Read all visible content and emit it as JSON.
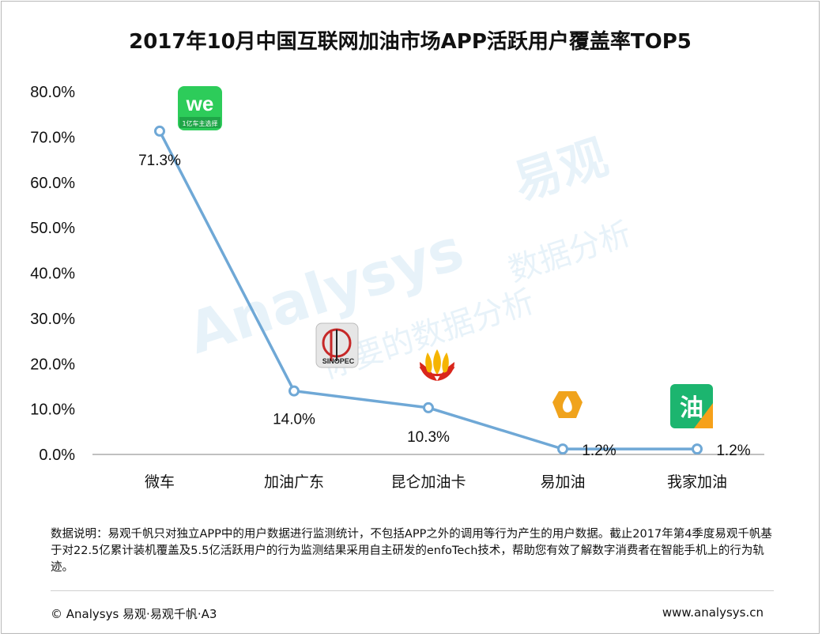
{
  "title": "2017年10月中国互联网加油市场APP活跃用户覆盖率TOP5",
  "watermark": {
    "brand": "Analysys",
    "brand_cn": "易观",
    "tagline_a": "数据分析",
    "tagline_b": "你要的数据分析"
  },
  "chart_data": {
    "type": "line",
    "title": "2017年10月中国互联网加油市场APP活跃用户覆盖率TOP5",
    "categories": [
      "微车",
      "加油广东",
      "昆仑加油卡",
      "易加油",
      "我家加油"
    ],
    "values": [
      71.3,
      14.0,
      10.3,
      1.2,
      1.2
    ],
    "data_labels": [
      "71.3%",
      "14.0%",
      "10.3%",
      "1.2%",
      "1.2%"
    ],
    "y_ticks": [
      "0.0%",
      "10.0%",
      "20.0%",
      "30.0%",
      "40.0%",
      "50.0%",
      "60.0%",
      "70.0%",
      "80.0%"
    ],
    "ylim": [
      0,
      80
    ],
    "xlabel": "",
    "ylabel": "",
    "grid": false,
    "line_color": "#6fa8d6",
    "marker_fill": "#ffffff",
    "marker_stroke": "#6fa8d6",
    "app_icons": [
      "we-app-icon",
      "sinopec-app-icon",
      "petrochina-app-icon",
      "yijiayou-app-icon",
      "wojia-app-icon"
    ]
  },
  "icons": {
    "we": {
      "main": "we",
      "sub": "1亿车主选择",
      "bg": "#2dcc5a"
    },
    "sinopec": {
      "text": "SINOPEC",
      "bg": "#e6e6e6"
    },
    "petrochina": {
      "color_red": "#d9261c",
      "color_yellow": "#f5b400"
    },
    "yijiayou": {
      "color": "#f0a31c"
    },
    "wojia": {
      "text": "油",
      "bg": "#1cb56f",
      "accent": "#f6a11a"
    }
  },
  "note": "数据说明：易观千帆只对独立APP中的用户数据进行监测统计，不包括APP之外的调用等行为产生的用户数据。截止2017年第4季度易观千帆基于对22.5亿累计装机覆盖及5.5亿活跃用户的行为监测结果采用自主研发的enfoTech技术，帮助您有效了解数字消费者在智能手机上的行为轨迹。",
  "footer": {
    "copyright": "© Analysys 易观·易观千帆·A3",
    "site": "www.analysys.cn"
  }
}
